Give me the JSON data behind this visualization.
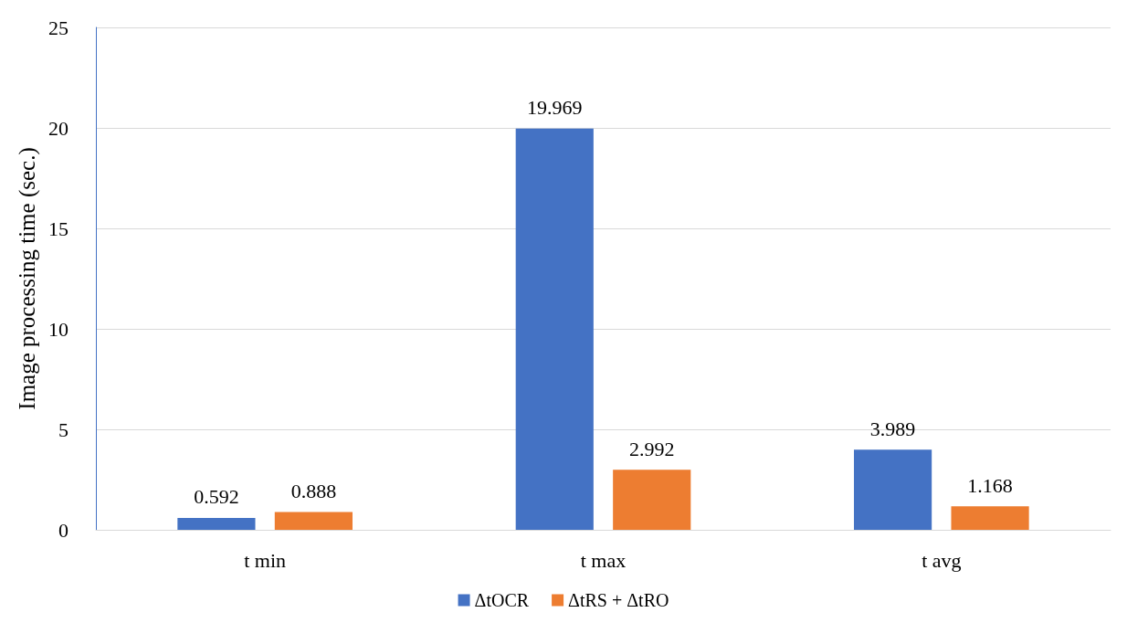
{
  "chart_data": {
    "type": "bar",
    "ylabel": "Image processing time (sec.)",
    "categories": [
      "t min",
      "t max",
      "t avg"
    ],
    "series": [
      {
        "name": "ΔtOCR",
        "color": "#4472c4",
        "values": [
          0.592,
          19.969,
          3.989
        ]
      },
      {
        "name": "ΔtRS + ΔtRO",
        "color": "#ed7d31",
        "values": [
          0.888,
          2.992,
          1.168
        ]
      }
    ],
    "ylim": [
      0,
      25
    ],
    "yticks": [
      0,
      5,
      10,
      15,
      20,
      25
    ],
    "grid": "y",
    "legend": "bottom",
    "data_labels": true
  }
}
